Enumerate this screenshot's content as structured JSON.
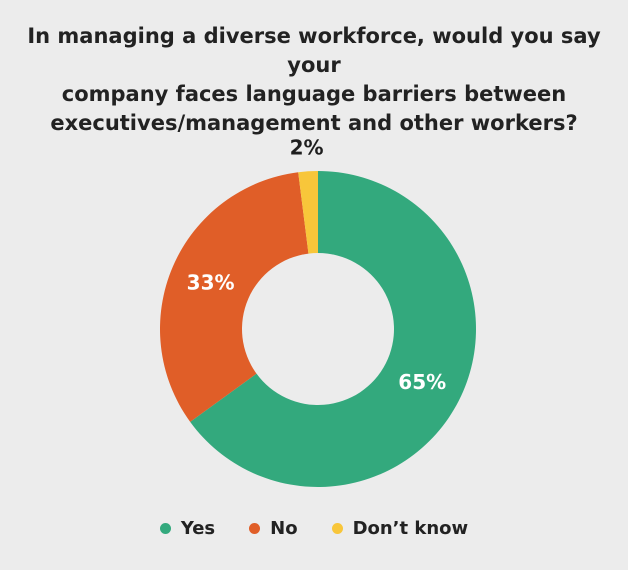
{
  "chart_data": {
    "type": "pie",
    "title": "In managing a diverse workforce, would you say your company faces language barriers between executives/management and other workers?",
    "title_lines": [
      "In managing a diverse workforce, would you say your",
      "company faces language barriers between",
      "executives/management and other workers?"
    ],
    "donut": true,
    "legend_position": "bottom",
    "categories": [
      "Yes",
      "No",
      "Don’t know"
    ],
    "values": [
      65,
      33,
      2
    ],
    "value_labels": [
      "65%",
      "33%",
      "2%"
    ],
    "colors": [
      "#33a97d",
      "#e05e28",
      "#f8c63a"
    ]
  }
}
